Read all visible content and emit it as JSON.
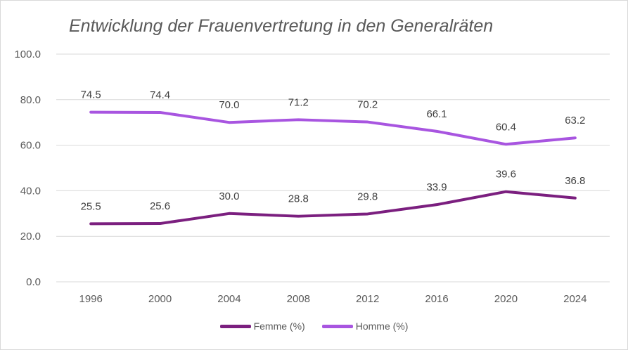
{
  "chart_data": {
    "type": "line",
    "title": "Entwicklung der Frauenvertretung in den Generalräten",
    "categories": [
      "1996",
      "2000",
      "2004",
      "2008",
      "2012",
      "2016",
      "2020",
      "2024"
    ],
    "series": [
      {
        "name": "Femme (%)",
        "color": "#7b1f7f",
        "values": [
          25.5,
          25.6,
          30.0,
          28.8,
          29.8,
          33.9,
          39.6,
          36.8
        ]
      },
      {
        "name": "Homme (%)",
        "color": "#a855e0",
        "values": [
          74.5,
          74.4,
          70.0,
          71.2,
          70.2,
          66.1,
          60.4,
          63.2
        ]
      }
    ],
    "ylim": [
      0,
      100
    ],
    "yticks": [
      "0.0",
      "20.0",
      "40.0",
      "60.0",
      "80.0",
      "100.0"
    ],
    "grid": true,
    "legend": "bottom"
  }
}
